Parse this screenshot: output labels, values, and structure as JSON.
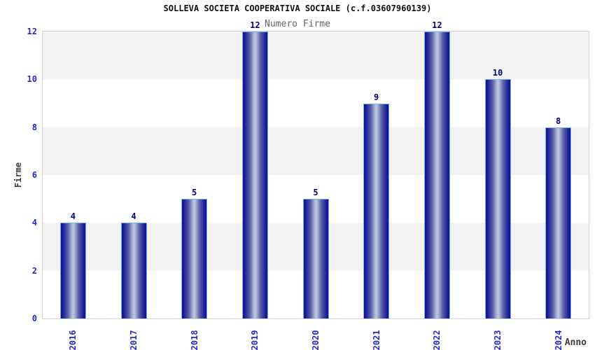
{
  "chart_data": {
    "type": "bar",
    "title": "SOLLEVA SOCIETA COOPERATIVA SOCIALE (c.f.03607960139)",
    "subtitle": "Numero Firme",
    "xlabel": "Anno",
    "ylabel": "Firme",
    "categories": [
      "2016",
      "2017",
      "2018",
      "2019",
      "2020",
      "2021",
      "2022",
      "2023",
      "2024"
    ],
    "values": [
      4,
      4,
      5,
      12,
      5,
      9,
      12,
      10,
      8
    ],
    "ylim": [
      0,
      12
    ],
    "yticks": [
      0,
      2,
      4,
      6,
      8,
      10,
      12
    ],
    "grid": "alternating-horizontal-bands",
    "legend": "none",
    "colors": {
      "title": "#111111",
      "subtitle": "#666666",
      "axis_title": "#3d3d3d",
      "tick_label": "#2727cd",
      "value_label": "#00007d",
      "bar_dark": "#0f0f86",
      "bar_light": "#b9c1dc",
      "bar_border": "#76b4f4",
      "band_gray": "#f2f2f2",
      "plot_border": "#d4d4d4",
      "background": "#ffffff"
    }
  }
}
